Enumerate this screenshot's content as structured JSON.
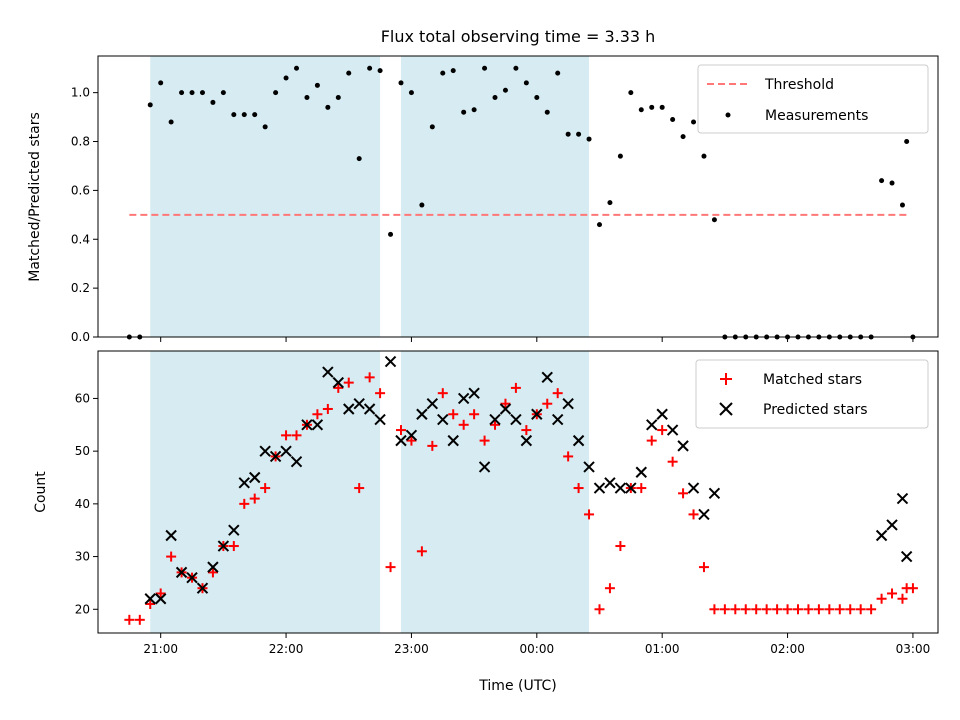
{
  "chart_data": [
    {
      "type": "scatter",
      "title": "Flux total observing time = 3.33 h",
      "xlabel": "",
      "ylabel": "Matched/Predicted stars",
      "ylim": [
        0,
        1.15
      ],
      "yticks": [
        "0.0",
        "0.2",
        "0.4",
        "0.6",
        "0.8",
        "1.0"
      ],
      "shaded_intervals": [
        [
          "20:55",
          "22:45"
        ],
        [
          "22:55",
          "00:25"
        ]
      ],
      "legend_position": "top-right",
      "threshold": {
        "name": "Threshold",
        "value": 0.5,
        "x_range": [
          "20:45",
          "02:57"
        ],
        "color": "#ff7777"
      },
      "series": [
        {
          "name": "Measurements",
          "color": "#000000",
          "marker": "dot",
          "points": [
            [
              "20:45",
              0.0
            ],
            [
              "20:50",
              0.0
            ],
            [
              "20:55",
              0.95
            ],
            [
              "21:00",
              1.04
            ],
            [
              "21:05",
              0.88
            ],
            [
              "21:10",
              1.0
            ],
            [
              "21:15",
              1.0
            ],
            [
              "21:20",
              1.0
            ],
            [
              "21:25",
              0.96
            ],
            [
              "21:30",
              1.0
            ],
            [
              "21:35",
              0.91
            ],
            [
              "21:40",
              0.91
            ],
            [
              "21:45",
              0.91
            ],
            [
              "21:50",
              0.86
            ],
            [
              "21:55",
              1.0
            ],
            [
              "22:00",
              1.06
            ],
            [
              "22:05",
              1.1
            ],
            [
              "22:10",
              0.98
            ],
            [
              "22:15",
              1.03
            ],
            [
              "22:20",
              0.94
            ],
            [
              "22:25",
              0.98
            ],
            [
              "22:30",
              1.08
            ],
            [
              "22:35",
              0.73
            ],
            [
              "22:40",
              1.1
            ],
            [
              "22:45",
              1.09
            ],
            [
              "22:50",
              0.42
            ],
            [
              "22:55",
              1.04
            ],
            [
              "23:00",
              1.0
            ],
            [
              "23:05",
              0.54
            ],
            [
              "23:10",
              0.86
            ],
            [
              "23:15",
              1.08
            ],
            [
              "23:20",
              1.09
            ],
            [
              "23:25",
              0.92
            ],
            [
              "23:30",
              0.93
            ],
            [
              "23:35",
              1.1
            ],
            [
              "23:40",
              0.98
            ],
            [
              "23:45",
              1.01
            ],
            [
              "23:50",
              1.1
            ],
            [
              "23:55",
              1.04
            ],
            [
              "00:00",
              0.98
            ],
            [
              "00:05",
              0.92
            ],
            [
              "00:10",
              1.08
            ],
            [
              "00:15",
              0.83
            ],
            [
              "00:20",
              0.83
            ],
            [
              "00:25",
              0.81
            ],
            [
              "00:30",
              0.46
            ],
            [
              "00:35",
              0.55
            ],
            [
              "00:40",
              0.74
            ],
            [
              "00:45",
              1.0
            ],
            [
              "00:50",
              0.93
            ],
            [
              "00:55",
              0.94
            ],
            [
              "01:00",
              0.94
            ],
            [
              "01:05",
              0.89
            ],
            [
              "01:10",
              0.82
            ],
            [
              "01:15",
              0.88
            ],
            [
              "01:20",
              0.74
            ],
            [
              "01:25",
              0.48
            ],
            [
              "01:30",
              0.0
            ],
            [
              "01:35",
              0.0
            ],
            [
              "01:40",
              0.0
            ],
            [
              "01:45",
              0.0
            ],
            [
              "01:50",
              0.0
            ],
            [
              "01:55",
              0.0
            ],
            [
              "02:00",
              0.0
            ],
            [
              "02:05",
              0.0
            ],
            [
              "02:10",
              0.0
            ],
            [
              "02:15",
              0.0
            ],
            [
              "02:20",
              0.0
            ],
            [
              "02:25",
              0.0
            ],
            [
              "02:30",
              0.0
            ],
            [
              "02:35",
              0.0
            ],
            [
              "02:40",
              0.0
            ],
            [
              "02:45",
              0.64
            ],
            [
              "02:50",
              0.63
            ],
            [
              "02:55",
              0.54
            ],
            [
              "02:57",
              0.8
            ],
            [
              "03:00",
              0.0
            ]
          ]
        }
      ]
    },
    {
      "type": "scatter",
      "title": "",
      "xlabel": "Time (UTC)",
      "ylabel": "Count",
      "ylim": [
        15.5,
        69
      ],
      "yticks": [
        "20",
        "30",
        "40",
        "50",
        "60"
      ],
      "xticks": [
        "21:00",
        "22:00",
        "23:00",
        "00:00",
        "01:00",
        "02:00",
        "03:00"
      ],
      "shaded_intervals": [
        [
          "20:55",
          "22:45"
        ],
        [
          "22:55",
          "00:25"
        ]
      ],
      "legend_position": "top-right",
      "series": [
        {
          "name": "Matched stars",
          "color": "#ff0000",
          "marker": "plus",
          "points": [
            [
              "20:45",
              18
            ],
            [
              "20:50",
              18
            ],
            [
              "20:55",
              21
            ],
            [
              "21:00",
              23
            ],
            [
              "21:05",
              30
            ],
            [
              "21:10",
              27
            ],
            [
              "21:15",
              26
            ],
            [
              "21:20",
              24
            ],
            [
              "21:25",
              27
            ],
            [
              "21:30",
              32
            ],
            [
              "21:35",
              32
            ],
            [
              "21:40",
              40
            ],
            [
              "21:45",
              41
            ],
            [
              "21:50",
              43
            ],
            [
              "21:55",
              49
            ],
            [
              "22:00",
              53
            ],
            [
              "22:05",
              53
            ],
            [
              "22:10",
              55
            ],
            [
              "22:15",
              57
            ],
            [
              "22:20",
              58
            ],
            [
              "22:25",
              62
            ],
            [
              "22:30",
              63
            ],
            [
              "22:35",
              43
            ],
            [
              "22:40",
              64
            ],
            [
              "22:45",
              61
            ],
            [
              "22:50",
              28
            ],
            [
              "22:55",
              54
            ],
            [
              "23:00",
              52
            ],
            [
              "23:05",
              31
            ],
            [
              "23:10",
              51
            ],
            [
              "23:15",
              61
            ],
            [
              "23:20",
              57
            ],
            [
              "23:25",
              55
            ],
            [
              "23:30",
              57
            ],
            [
              "23:35",
              52
            ],
            [
              "23:40",
              55
            ],
            [
              "23:45",
              59
            ],
            [
              "23:50",
              62
            ],
            [
              "23:55",
              54
            ],
            [
              "00:00",
              57
            ],
            [
              "00:05",
              59
            ],
            [
              "00:10",
              61
            ],
            [
              "00:15",
              49
            ],
            [
              "00:20",
              43
            ],
            [
              "00:25",
              38
            ],
            [
              "00:30",
              20
            ],
            [
              "00:35",
              24
            ],
            [
              "00:40",
              32
            ],
            [
              "00:45",
              43
            ],
            [
              "00:50",
              43
            ],
            [
              "00:55",
              52
            ],
            [
              "01:00",
              54
            ],
            [
              "01:05",
              48
            ],
            [
              "01:10",
              42
            ],
            [
              "01:15",
              38
            ],
            [
              "01:20",
              28
            ],
            [
              "01:25",
              20
            ],
            [
              "01:30",
              20
            ],
            [
              "01:35",
              20
            ],
            [
              "01:40",
              20
            ],
            [
              "01:45",
              20
            ],
            [
              "01:50",
              20
            ],
            [
              "01:55",
              20
            ],
            [
              "02:00",
              20
            ],
            [
              "02:05",
              20
            ],
            [
              "02:10",
              20
            ],
            [
              "02:15",
              20
            ],
            [
              "02:20",
              20
            ],
            [
              "02:25",
              20
            ],
            [
              "02:30",
              20
            ],
            [
              "02:35",
              20
            ],
            [
              "02:40",
              20
            ],
            [
              "02:45",
              22
            ],
            [
              "02:50",
              23
            ],
            [
              "02:55",
              22
            ],
            [
              "02:57",
              24
            ],
            [
              "03:00",
              24
            ]
          ]
        },
        {
          "name": "Predicted stars",
          "color": "#000000",
          "marker": "x",
          "points": [
            [
              "20:55",
              22
            ],
            [
              "21:00",
              22
            ],
            [
              "21:05",
              34
            ],
            [
              "21:10",
              27
            ],
            [
              "21:15",
              26
            ],
            [
              "21:20",
              24
            ],
            [
              "21:25",
              28
            ],
            [
              "21:30",
              32
            ],
            [
              "21:35",
              35
            ],
            [
              "21:40",
              44
            ],
            [
              "21:45",
              45
            ],
            [
              "21:50",
              50
            ],
            [
              "21:55",
              49
            ],
            [
              "22:00",
              50
            ],
            [
              "22:05",
              48
            ],
            [
              "22:10",
              55
            ],
            [
              "22:15",
              55
            ],
            [
              "22:20",
              65
            ],
            [
              "22:25",
              63
            ],
            [
              "22:30",
              58
            ],
            [
              "22:35",
              59
            ],
            [
              "22:40",
              58
            ],
            [
              "22:45",
              56
            ],
            [
              "22:50",
              67
            ],
            [
              "22:55",
              52
            ],
            [
              "23:00",
              53
            ],
            [
              "23:05",
              57
            ],
            [
              "23:10",
              59
            ],
            [
              "23:15",
              56
            ],
            [
              "23:20",
              52
            ],
            [
              "23:25",
              60
            ],
            [
              "23:30",
              61
            ],
            [
              "23:35",
              47
            ],
            [
              "23:40",
              56
            ],
            [
              "23:45",
              58
            ],
            [
              "23:50",
              56
            ],
            [
              "23:55",
              52
            ],
            [
              "00:00",
              57
            ],
            [
              "00:05",
              64
            ],
            [
              "00:10",
              56
            ],
            [
              "00:15",
              59
            ],
            [
              "00:20",
              52
            ],
            [
              "00:25",
              47
            ],
            [
              "00:30",
              43
            ],
            [
              "00:35",
              44
            ],
            [
              "00:40",
              43
            ],
            [
              "00:45",
              43
            ],
            [
              "00:50",
              46
            ],
            [
              "00:55",
              55
            ],
            [
              "01:00",
              57
            ],
            [
              "01:05",
              54
            ],
            [
              "01:10",
              51
            ],
            [
              "01:15",
              43
            ],
            [
              "01:20",
              38
            ],
            [
              "01:25",
              42
            ],
            [
              "02:45",
              34
            ],
            [
              "02:50",
              36
            ],
            [
              "02:55",
              41
            ],
            [
              "02:57",
              30
            ]
          ]
        }
      ]
    }
  ]
}
